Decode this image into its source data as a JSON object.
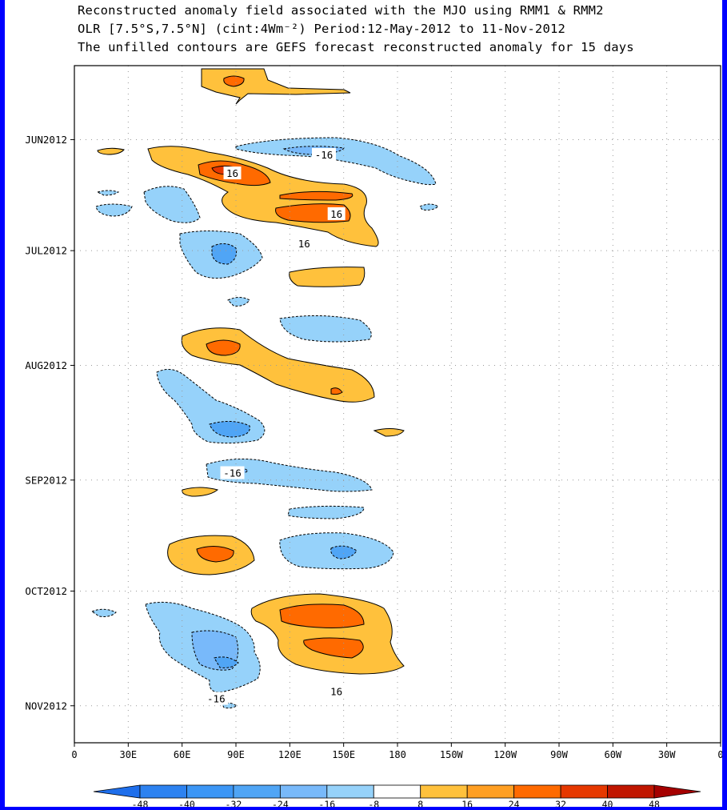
{
  "title": {
    "line1": "Reconstructed anomaly field associated with the MJO using RMM1 & RMM2",
    "line2": "OLR [7.5°S,7.5°N] (cint:4Wm⁻²) Period:12-May-2012 to 11-Nov-2012",
    "line3": "The unfilled contours are GEFS forecast reconstructed anomaly for 15 days"
  },
  "chart_data": {
    "type": "heatmap",
    "x_ticks": [
      "0",
      "30E",
      "60E",
      "90E",
      "120E",
      "150E",
      "180",
      "150W",
      "120W",
      "90W",
      "60W",
      "30W",
      "0"
    ],
    "y_ticks": [
      "JUN2012",
      "JUL2012",
      "AUG2012",
      "SEP2012",
      "OCT2012",
      "NOV2012"
    ],
    "colorbar_levels": [
      "-48",
      "-40",
      "-32",
      "-24",
      "-16",
      "-8",
      "8",
      "16",
      "24",
      "32",
      "40",
      "48"
    ],
    "colorbar_colors": [
      "#1e6eeb",
      "#2d82f0",
      "#3c96f5",
      "#50a5f5",
      "#78b9fa",
      "#96d2fa",
      "#ffffff",
      "#ffc13c",
      "#ff9f22",
      "#ff6a00",
      "#e63800",
      "#c01600",
      "#a50000"
    ],
    "contour_labels": [
      {
        "text": "-16",
        "lon": 139,
        "date": "2012-06-05"
      },
      {
        "text": "16",
        "lon": 88,
        "date": "2012-06-10"
      },
      {
        "text": "16",
        "lon": 146,
        "date": "2012-06-21"
      },
      {
        "text": "16",
        "lon": 128,
        "date": "2012-06-29"
      },
      {
        "text": "-16",
        "lon": 88,
        "date": "2012-08-30"
      },
      {
        "text": "-16",
        "lon": 79,
        "date": "2012-10-30"
      },
      {
        "text": "16",
        "lon": 146,
        "date": "2012-10-28"
      }
    ]
  }
}
